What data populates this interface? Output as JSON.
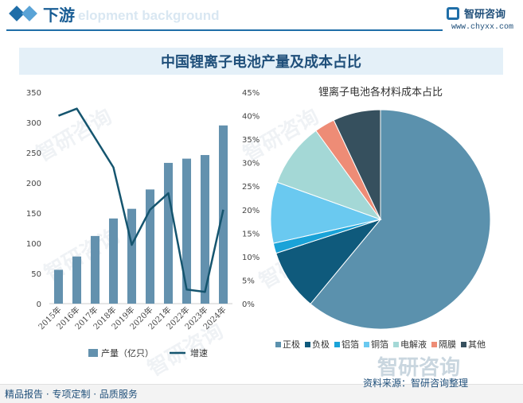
{
  "header": {
    "title": "下游",
    "subtitle_en": "elopment background"
  },
  "logo": {
    "name": "智研咨询",
    "url": "www.chyxx.com"
  },
  "main_title": "中国锂离子电池产量及成本占比",
  "watermark": "智研咨询",
  "footer": {
    "left": "精品报告 · 专项定制 · 品质服务",
    "right": "资料来源：智研咨询整理"
  },
  "chart_data": [
    {
      "type": "bar",
      "categories": [
        "2015年",
        "2016年",
        "2017年",
        "2018年",
        "2019年",
        "2020年",
        "2021年",
        "2022年",
        "2023年",
        "2024年"
      ],
      "series": [
        {
          "name": "产量（亿只）",
          "type": "bar",
          "axis": "left",
          "color": "#6391ae",
          "values": [
            56,
            78,
            112,
            141,
            157,
            189,
            233,
            240,
            246,
            295
          ]
        },
        {
          "name": "增速",
          "type": "line",
          "axis": "right",
          "color": "#15556f",
          "values": [
            40.0,
            41.5,
            null,
            29.0,
            12.5,
            20.0,
            23.5,
            3.0,
            2.5,
            20.0
          ]
        }
      ],
      "left_axis": {
        "ticks": [
          "0",
          "50",
          "100",
          "150",
          "200",
          "250",
          "300",
          "350"
        ],
        "ylim": [
          0,
          350
        ]
      },
      "right_axis": {
        "ticks": [
          "0%",
          "5%",
          "10%",
          "15%",
          "20%",
          "25%",
          "30%",
          "35%",
          "40%",
          "45%"
        ],
        "ylim": [
          0,
          45
        ]
      },
      "legend": "bottom"
    },
    {
      "type": "pie",
      "title": "锂离子电池各材料成本占比",
      "labels": [
        "正极",
        "负极",
        "铝箔",
        "铜箔",
        "电解液",
        "隔膜",
        "其他"
      ],
      "values": [
        61,
        9,
        1.5,
        9,
        9.5,
        3,
        7
      ],
      "colors": [
        "#5b91ad",
        "#0f5a7c",
        "#1aa3d8",
        "#6ac9f0",
        "#a4d8d6",
        "#ee8c76",
        "#36505e"
      ],
      "legend": "bottom"
    }
  ]
}
